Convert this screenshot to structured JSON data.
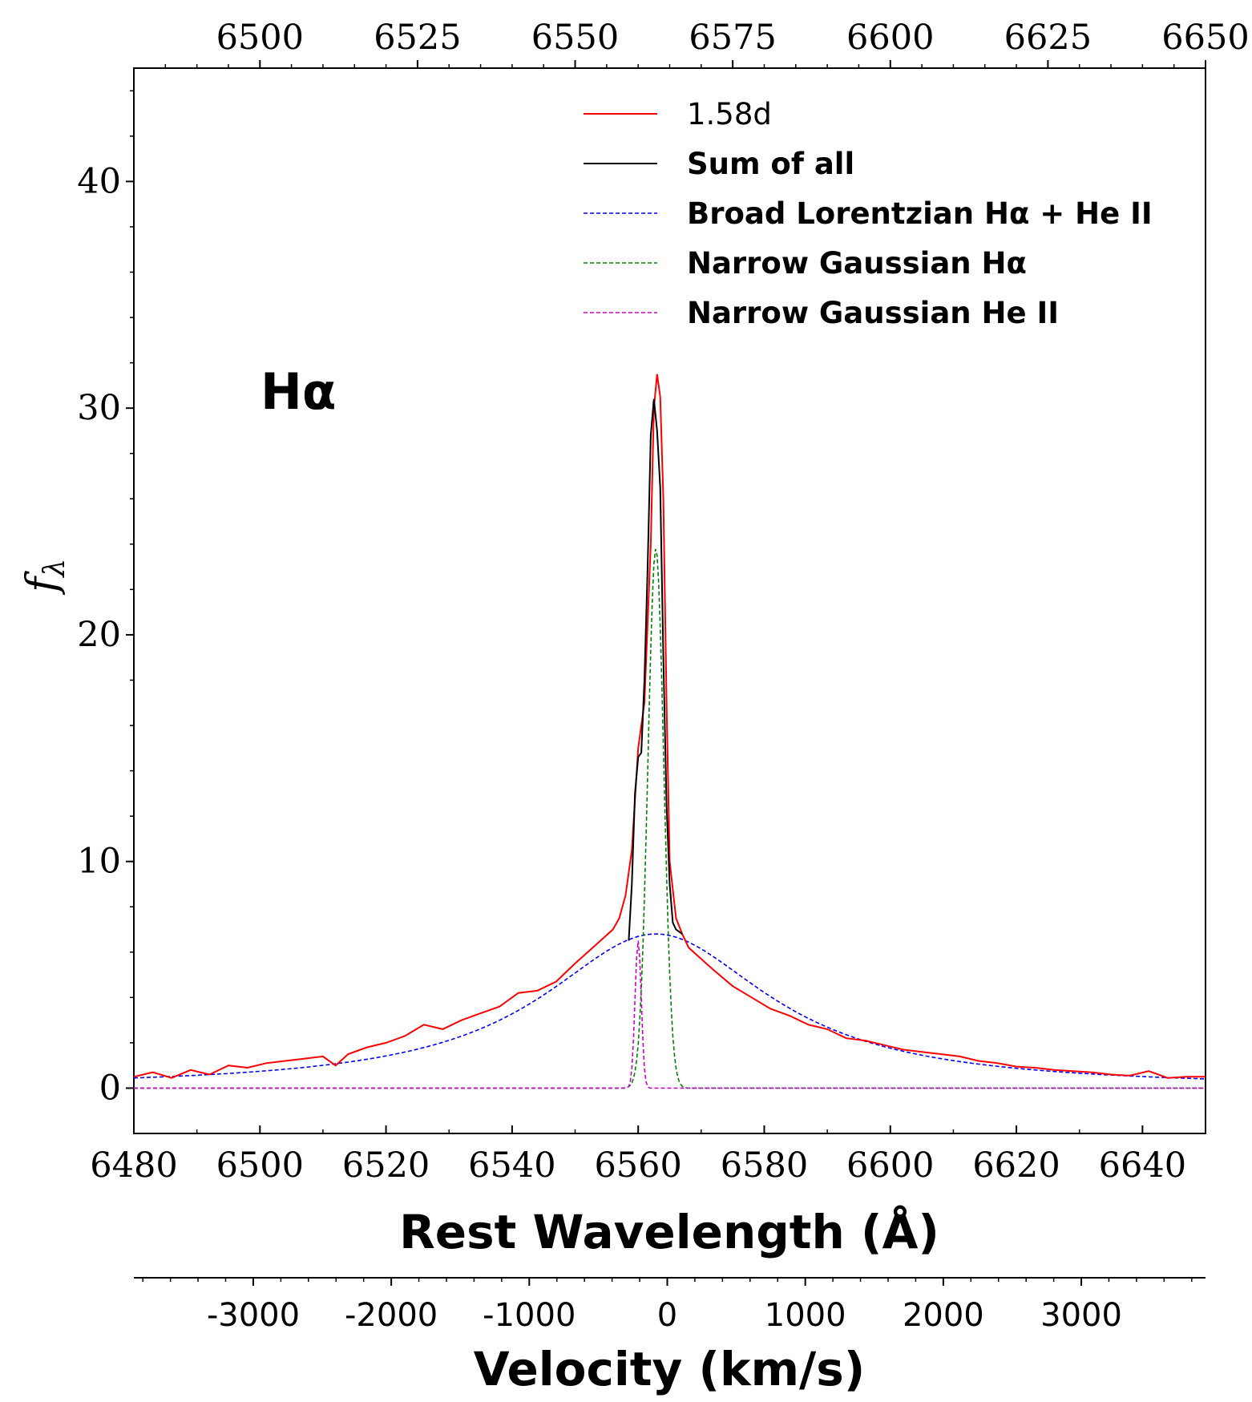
{
  "chart_data": {
    "type": "line",
    "annotation": "Hα",
    "xlabel": "Rest Wavelength (Å)",
    "ylabel": "f_λ",
    "ylabel_base": "f",
    "ylabel_sub": "λ",
    "xlim": [
      6480,
      6650
    ],
    "ylim": [
      -2,
      45
    ],
    "x_ticks": [
      "6480",
      "6500",
      "6520",
      "6540",
      "6560",
      "6580",
      "6600",
      "6620",
      "6640"
    ],
    "y_ticks": [
      "0",
      "10",
      "20",
      "30",
      "40"
    ],
    "top_axis": {
      "ticks": [
        "6500",
        "6525",
        "6550",
        "6575",
        "6600",
        "6625",
        "6650"
      ]
    },
    "velocity_axis": {
      "label": "Velocity (km/s)",
      "range_kms": [
        -3865,
        3900
      ],
      "ticks": [
        "-3000",
        "-2000",
        "-1000",
        "0",
        "1000",
        "2000",
        "3000"
      ]
    },
    "series": [
      {
        "name": "1.58d",
        "color": "#ff0000",
        "style": "solid",
        "x": [
          6480,
          6483,
          6486,
          6489,
          6492,
          6495,
          6498,
          6501,
          6504,
          6507,
          6510,
          6512,
          6514,
          6517,
          6520,
          6523,
          6526,
          6529,
          6532,
          6535,
          6538,
          6541,
          6544,
          6547,
          6550,
          6552,
          6554,
          6556,
          6557,
          6558,
          6559,
          6560,
          6561,
          6562,
          6562.5,
          6563,
          6563.5,
          6564,
          6564.5,
          6565,
          6566,
          6567,
          6568,
          6570,
          6572,
          6575,
          6578,
          6581,
          6584,
          6587,
          6590,
          6593,
          6596,
          6599,
          6602,
          6605,
          6608,
          6611,
          6614,
          6617,
          6620,
          6623,
          6626,
          6629,
          6632,
          6635,
          6638,
          6641,
          6644,
          6647,
          6650
        ],
        "y": [
          0.5,
          0.7,
          0.45,
          0.8,
          0.6,
          1.0,
          0.9,
          1.1,
          1.2,
          1.3,
          1.4,
          1.0,
          1.5,
          1.8,
          2.0,
          2.3,
          2.8,
          2.6,
          3.0,
          3.3,
          3.6,
          4.2,
          4.3,
          4.7,
          5.5,
          6.0,
          6.5,
          7.0,
          7.5,
          8.5,
          10.5,
          15.0,
          17.0,
          24.0,
          30.0,
          31.5,
          30.5,
          26.0,
          17.0,
          10.0,
          7.5,
          6.8,
          6.2,
          5.7,
          5.2,
          4.5,
          4.0,
          3.5,
          3.2,
          2.8,
          2.6,
          2.2,
          2.1,
          1.9,
          1.7,
          1.6,
          1.5,
          1.4,
          1.2,
          1.1,
          0.95,
          0.9,
          0.8,
          0.75,
          0.7,
          0.6,
          0.55,
          0.75,
          0.45,
          0.5,
          0.5
        ]
      },
      {
        "name": "Sum of all",
        "color": "#000000",
        "style": "solid",
        "x": [
          6558.5,
          6559,
          6559.5,
          6560,
          6560.5,
          6561,
          6561.5,
          6562,
          6562.5,
          6563,
          6563.5,
          6564,
          6564.5,
          6565,
          6565.5,
          6566,
          6567
        ],
        "y": [
          6.5,
          9.0,
          13.0,
          14.6,
          14.8,
          18.0,
          23.0,
          28.8,
          30.4,
          29.0,
          26.5,
          19.0,
          12.5,
          9.0,
          7.3,
          7.0,
          6.8
        ]
      },
      {
        "name": "Broad Lorentzian Hα + He II",
        "color": "#0000ff",
        "style": "dashed",
        "model": {
          "center": 6562.8,
          "amplitude": 6.8,
          "hwhm": 22
        }
      },
      {
        "name": "Narrow Gaussian Hα",
        "color": "#008000",
        "style": "dashed",
        "model": {
          "center": 6562.8,
          "amplitude": 23.8,
          "sigma": 1.25
        }
      },
      {
        "name": "Narrow Gaussian He II",
        "color": "#cc00cc",
        "style": "dashed",
        "model": {
          "center": 6560.0,
          "amplitude": 6.5,
          "sigma": 0.5
        }
      }
    ],
    "legend": {
      "position": "top-center",
      "entries": [
        {
          "label": "1.58d",
          "color": "#ff0000",
          "style": "solid",
          "bold": false
        },
        {
          "label": "Sum of all",
          "color": "#000000",
          "style": "solid",
          "bold": true
        },
        {
          "label": "Broad Lorentzian Hα + He II",
          "color": "#0000ff",
          "style": "dashed",
          "bold": true
        },
        {
          "label": "Narrow Gaussian Hα",
          "color": "#008000",
          "style": "dashed",
          "bold": true
        },
        {
          "label": "Narrow Gaussian He II",
          "color": "#cc00cc",
          "style": "dashed",
          "bold": true
        }
      ]
    }
  }
}
